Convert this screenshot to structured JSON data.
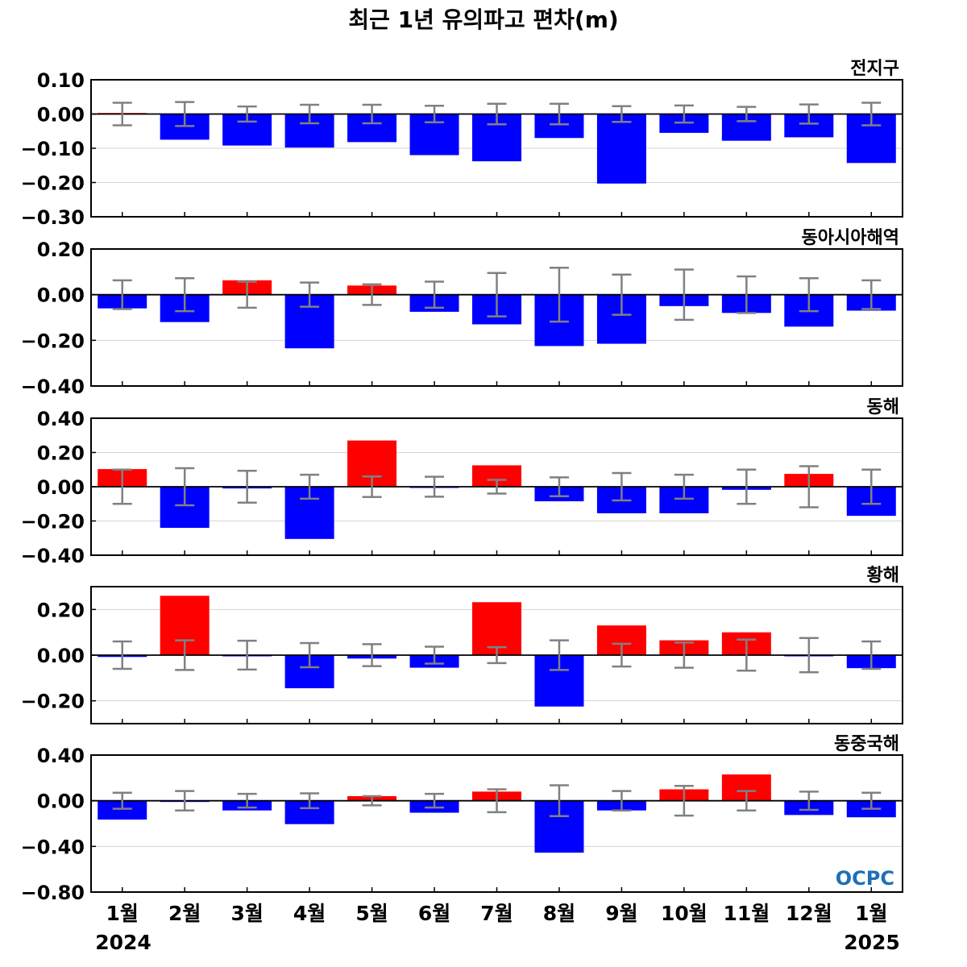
{
  "title": "최근 1년 유의파고 편차(m)",
  "x_labels": [
    "1월",
    "2월",
    "3월",
    "4월",
    "5월",
    "6월",
    "7월",
    "8월",
    "9월",
    "10월",
    "11월",
    "12월",
    "1월"
  ],
  "year_start": "2024",
  "year_end": "2025",
  "logo_text": "OCPC",
  "colors": {
    "positive": "#ff0000",
    "negative": "#0000ff",
    "error_bar": "#808080",
    "zero_line": "#000000",
    "grid": "#d3d3d3",
    "logo": "#1e6fb5"
  },
  "chart_data": [
    {
      "type": "bar",
      "region": "전지구",
      "categories": [
        "1월",
        "2월",
        "3월",
        "4월",
        "5월",
        "6월",
        "7월",
        "8월",
        "9월",
        "10월",
        "11월",
        "12월",
        "1월"
      ],
      "values": [
        0.003,
        -0.075,
        -0.092,
        -0.098,
        -0.082,
        -0.12,
        -0.138,
        -0.07,
        -0.203,
        -0.055,
        -0.078,
        -0.068,
        -0.143
      ],
      "error": [
        0.033,
        0.035,
        0.022,
        0.027,
        0.027,
        0.024,
        0.03,
        0.03,
        0.023,
        0.025,
        0.021,
        0.028,
        0.033
      ],
      "ylim": [
        -0.3,
        0.1
      ],
      "yticks": [
        0.1,
        0.0,
        -0.1,
        -0.2,
        -0.3
      ],
      "ytick_labels": [
        "0.10",
        "0.00",
        "−0.10",
        "−0.20",
        "−0.30"
      ],
      "grid": true
    },
    {
      "type": "bar",
      "region": "동아시아해역",
      "categories": [
        "1월",
        "2월",
        "3월",
        "4월",
        "5월",
        "6월",
        "7월",
        "8월",
        "9월",
        "10월",
        "11월",
        "12월",
        "1월"
      ],
      "values": [
        -0.06,
        -0.12,
        0.063,
        -0.235,
        0.04,
        -0.075,
        -0.13,
        -0.225,
        -0.215,
        -0.05,
        -0.08,
        -0.14,
        -0.07
      ],
      "error": [
        0.063,
        0.072,
        0.057,
        0.053,
        0.045,
        0.057,
        0.095,
        0.118,
        0.088,
        0.11,
        0.08,
        0.072,
        0.063
      ],
      "ylim": [
        -0.4,
        0.2
      ],
      "yticks": [
        0.2,
        0.0,
        -0.2,
        -0.4
      ],
      "ytick_labels": [
        "0.20",
        "0.00",
        "−0.20",
        "−0.40"
      ],
      "grid": true
    },
    {
      "type": "bar",
      "region": "동해",
      "categories": [
        "1월",
        "2월",
        "3월",
        "4월",
        "5월",
        "6월",
        "7월",
        "8월",
        "9월",
        "10월",
        "11월",
        "12월",
        "1월"
      ],
      "values": [
        0.103,
        -0.24,
        -0.01,
        -0.305,
        0.27,
        -0.003,
        0.125,
        -0.085,
        -0.155,
        -0.155,
        -0.018,
        0.075,
        -0.17
      ],
      "error": [
        0.1,
        0.108,
        0.093,
        0.07,
        0.06,
        0.058,
        0.04,
        0.055,
        0.08,
        0.07,
        0.1,
        0.12,
        0.1
      ],
      "ylim": [
        -0.4,
        0.4
      ],
      "yticks": [
        0.4,
        0.2,
        0.0,
        -0.2,
        -0.4
      ],
      "ytick_labels": [
        "0.40",
        "0.20",
        "0.00",
        "−0.20",
        "−0.40"
      ],
      "grid": true
    },
    {
      "type": "bar",
      "region": "황해",
      "categories": [
        "1월",
        "2월",
        "3월",
        "4월",
        "5월",
        "6월",
        "7월",
        "8월",
        "9월",
        "10월",
        "11월",
        "12월",
        "1월"
      ],
      "values": [
        -0.008,
        0.26,
        -0.005,
        -0.145,
        -0.015,
        -0.055,
        0.232,
        -0.225,
        0.13,
        0.065,
        0.1,
        -0.003,
        -0.057
      ],
      "error": [
        0.06,
        0.065,
        0.063,
        0.053,
        0.048,
        0.037,
        0.035,
        0.065,
        0.05,
        0.055,
        0.068,
        0.075,
        0.06
      ],
      "ylim": [
        -0.3,
        0.3
      ],
      "yticks": [
        0.2,
        0.0,
        -0.2
      ],
      "ytick_labels": [
        "0.20",
        "0.00",
        "−0.20"
      ],
      "grid": true
    },
    {
      "type": "bar",
      "region": "동중국해",
      "categories": [
        "1월",
        "2월",
        "3월",
        "4월",
        "5월",
        "6월",
        "7월",
        "8월",
        "9월",
        "10월",
        "11월",
        "12월",
        "1월"
      ],
      "values": [
        -0.165,
        -0.01,
        -0.085,
        -0.205,
        0.04,
        -0.105,
        0.08,
        -0.455,
        -0.085,
        0.1,
        0.23,
        -0.125,
        -0.145
      ],
      "error": [
        0.07,
        0.085,
        0.06,
        0.065,
        0.04,
        0.06,
        0.1,
        0.135,
        0.085,
        0.13,
        0.085,
        0.08,
        0.07
      ],
      "ylim": [
        -0.8,
        0.4
      ],
      "yticks": [
        0.4,
        0.0,
        -0.4,
        -0.8
      ],
      "ytick_labels": [
        "0.40",
        "0.00",
        "−0.40",
        "−0.80"
      ],
      "grid": true
    }
  ]
}
